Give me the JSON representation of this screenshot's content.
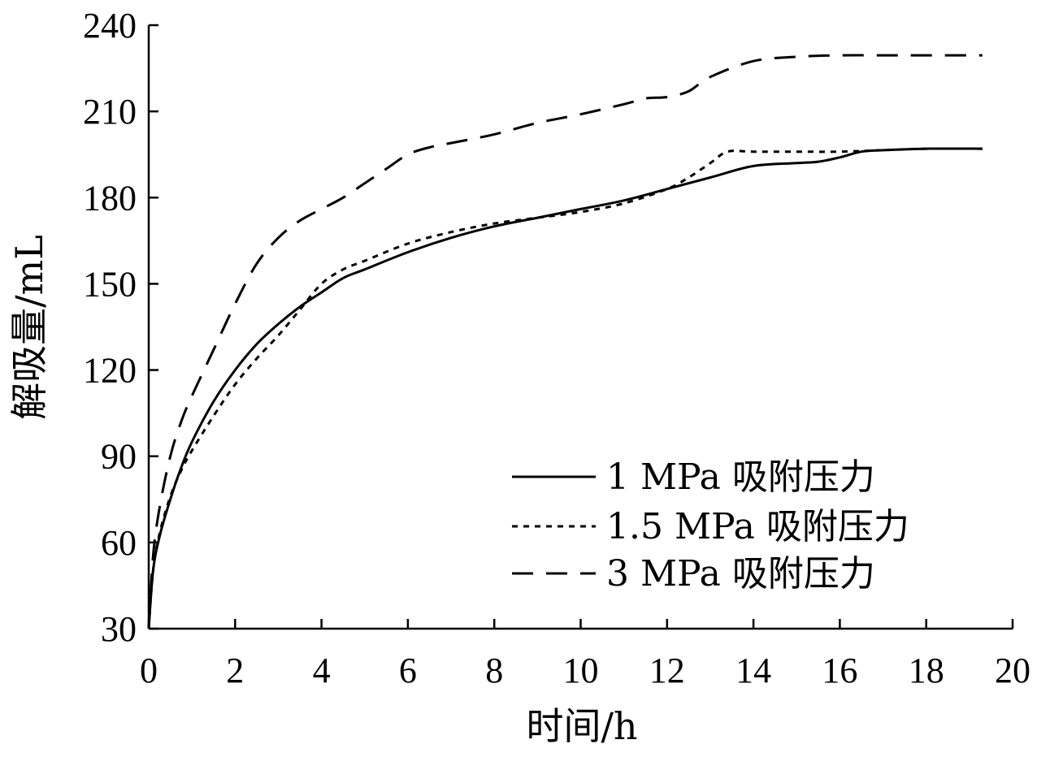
{
  "chart_data": {
    "type": "line",
    "title": "",
    "xlabel": "时间/h",
    "ylabel": "解吸量/mL",
    "xlim": [
      0,
      20
    ],
    "ylim": [
      30,
      240
    ],
    "xticks": [
      0,
      2,
      4,
      6,
      8,
      10,
      12,
      14,
      16,
      18,
      20
    ],
    "yticks": [
      30,
      60,
      90,
      120,
      150,
      180,
      210,
      240
    ],
    "grid": false,
    "legend_position": "lower-right",
    "series": [
      {
        "name": "1 MPa 吸附压力",
        "style": "solid",
        "x": [
          0,
          0.1,
          0.25,
          0.5,
          0.75,
          1,
          1.5,
          2,
          2.5,
          3,
          3.5,
          4,
          4.5,
          5,
          6,
          7,
          8,
          9,
          10,
          11,
          12,
          13,
          14,
          15,
          15.5,
          16,
          16.5,
          17,
          18,
          19.3
        ],
        "y": [
          30,
          50,
          62,
          75,
          86,
          95,
          109,
          120,
          129,
          136,
          142,
          147,
          152,
          155,
          161,
          166,
          170,
          173,
          176,
          179,
          183,
          187,
          191,
          192,
          192.5,
          194,
          196,
          196.5,
          197,
          197
        ]
      },
      {
        "name": "1.5 MPa 吸附压力",
        "style": "dotted",
        "x": [
          0,
          0.1,
          0.25,
          0.5,
          0.75,
          1,
          1.5,
          2,
          2.5,
          3,
          3.5,
          4,
          4.5,
          5,
          6,
          7,
          8,
          9,
          10,
          11,
          12,
          12.5,
          13,
          13.4,
          14,
          15,
          16,
          17,
          18,
          19.3
        ],
        "y": [
          30,
          50,
          63,
          76,
          85,
          92,
          104,
          115,
          124,
          132,
          141,
          150,
          155,
          158,
          164,
          168,
          171,
          173,
          175,
          178,
          183,
          187,
          192,
          196,
          196,
          196,
          196,
          196.5,
          197,
          197
        ]
      },
      {
        "name": "3 MPa 吸附压力",
        "style": "dashed",
        "x": [
          0,
          0.1,
          0.25,
          0.5,
          0.75,
          1,
          1.5,
          2,
          2.5,
          3,
          3.5,
          4,
          4.5,
          5,
          5.5,
          6,
          6.5,
          7,
          8,
          9,
          10,
          11,
          11.5,
          12,
          12.5,
          13,
          14,
          15,
          16,
          17,
          18,
          19.3
        ],
        "y": [
          30,
          55,
          72,
          90,
          102,
          111,
          127,
          143,
          157,
          166,
          172,
          176,
          180,
          185,
          190,
          195,
          197.5,
          199,
          202,
          206,
          209,
          212.5,
          214.5,
          215,
          217,
          222,
          227.5,
          229,
          229.5,
          229.5,
          229.5,
          229.5
        ]
      }
    ]
  }
}
